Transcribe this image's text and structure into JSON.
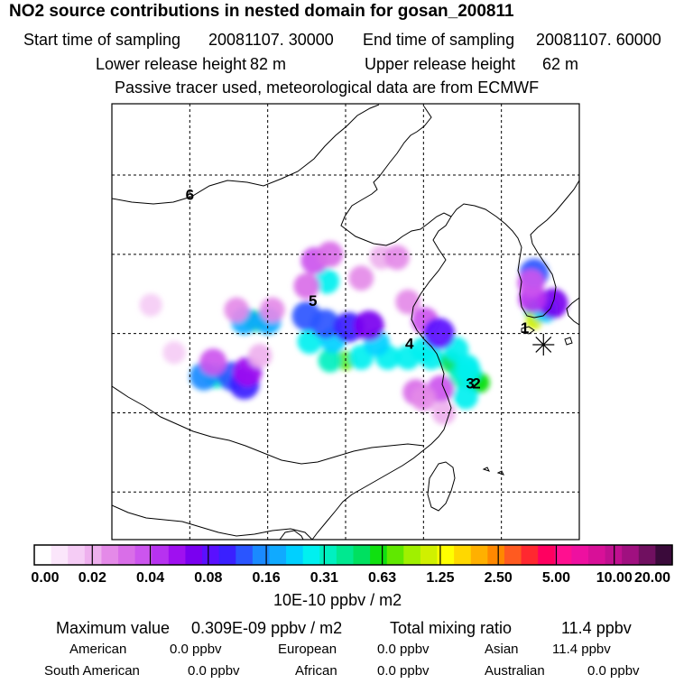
{
  "chart_data": {
    "type": "heatmap",
    "title": "NO2 source contributions in nested domain for gosan_200811",
    "start_label": "Start time of sampling",
    "start_value": "20081107. 30000",
    "end_label": "End time of sampling",
    "end_value": "20081107. 60000",
    "lower_label": "Lower release height",
    "lower_value": "82 m",
    "upper_label": "Upper release height",
    "upper_value": "62 m",
    "subtitle": "Passive tracer used, meteorological data are from ECMWF",
    "colorbar": {
      "unit": "10E-10 ppbv / m2",
      "ticks": [
        "0.00",
        "0.02",
        "0.04",
        "0.08",
        "0.16",
        "0.31",
        "0.63",
        "1.25",
        "2.50",
        "5.00",
        "10.00",
        "20.00"
      ],
      "colors": [
        "#ffffff",
        "#fbe6fb",
        "#f5ccf5",
        "#eeb0ee",
        "#e48ae8",
        "#d96ee8",
        "#cc55ee",
        "#b732f0",
        "#9f10f0",
        "#7a00f0",
        "#5a10ff",
        "#3a20ff",
        "#2a55ff",
        "#1a8aff",
        "#10aaff",
        "#00d0ff",
        "#00f0f0",
        "#00f0c0",
        "#00e890",
        "#00e060",
        "#10e010",
        "#60e800",
        "#a0f000",
        "#d0f000",
        "#ffff00",
        "#ffd800",
        "#ffb000",
        "#ff8800",
        "#ff5a20",
        "#ff2830",
        "#ff0060",
        "#ff1090",
        "#ee10a0",
        "#d81098",
        "#c01090",
        "#a01080",
        "#701060",
        "#3a0a3a"
      ]
    },
    "markers": [
      {
        "label": "1",
        "lon": 125.0,
        "lat": 34.3
      },
      {
        "label": "2",
        "lon": 121.9,
        "lat": 30.8
      },
      {
        "label": "3",
        "lon": 121.5,
        "lat": 30.8
      },
      {
        "label": "4",
        "lon": 117.6,
        "lat": 33.3
      },
      {
        "label": "5",
        "lon": 111.4,
        "lat": 36.0
      },
      {
        "label": "6",
        "lon": 103.5,
        "lat": 42.7
      }
    ],
    "receptor": {
      "name": "gosan",
      "lon": 126.2,
      "lat": 33.3
    },
    "extent": {
      "lon": [
        98.5,
        128.5
      ],
      "lat": [
        21.0,
        48.5
      ]
    },
    "grid": {
      "lons": [
        103.5,
        108.5,
        113.5,
        118.5,
        123.5
      ],
      "lats": [
        24.0,
        29.0,
        34.0,
        39.0,
        44.0
      ]
    },
    "plumes": [
      {
        "lon": 113.5,
        "lat": 32.3,
        "rank": 21
      },
      {
        "lon": 112.5,
        "lat": 32.3,
        "rank": 17
      },
      {
        "lon": 114.5,
        "lat": 32.5,
        "rank": 16
      },
      {
        "lon": 116.2,
        "lat": 32.5,
        "rank": 16
      },
      {
        "lon": 117.5,
        "lat": 32.5,
        "rank": 16
      },
      {
        "lon": 119.0,
        "lat": 32.5,
        "rank": 16
      },
      {
        "lon": 118.5,
        "lat": 33.0,
        "rank": 16
      },
      {
        "lon": 115.5,
        "lat": 33.4,
        "rank": 15
      },
      {
        "lon": 120.3,
        "lat": 32.2,
        "rank": 19
      },
      {
        "lon": 120.6,
        "lat": 33.0,
        "rank": 16
      },
      {
        "lon": 121.3,
        "lat": 31.9,
        "rank": 16
      },
      {
        "lon": 121.8,
        "lat": 31.0,
        "rank": 19
      },
      {
        "lon": 122.1,
        "lat": 30.9,
        "rank": 20
      },
      {
        "lon": 120.9,
        "lat": 31.3,
        "rank": 17
      },
      {
        "lon": 121.4,
        "lat": 31.6,
        "rank": 16
      },
      {
        "lon": 121.2,
        "lat": 30.0,
        "rank": 16
      },
      {
        "lon": 111.2,
        "lat": 33.5,
        "rank": 16
      },
      {
        "lon": 112.7,
        "lat": 33.6,
        "rank": 15
      },
      {
        "lon": 111.0,
        "lat": 35.1,
        "rank": 12
      },
      {
        "lon": 112.2,
        "lat": 34.6,
        "rank": 12
      },
      {
        "lon": 113.7,
        "lat": 34.4,
        "rank": 11
      },
      {
        "lon": 115.0,
        "lat": 34.5,
        "rank": 9
      },
      {
        "lon": 112.3,
        "lat": 37.3,
        "rank": 16
      },
      {
        "lon": 111.5,
        "lat": 38.6,
        "rank": 6
      },
      {
        "lon": 112.5,
        "lat": 39.0,
        "rank": 5
      },
      {
        "lon": 111.0,
        "lat": 37.0,
        "rank": 5
      },
      {
        "lon": 114.5,
        "lat": 37.5,
        "rank": 4
      },
      {
        "lon": 115.8,
        "lat": 38.8,
        "rank": 3
      },
      {
        "lon": 116.8,
        "lat": 38.8,
        "rank": 4
      },
      {
        "lon": 117.5,
        "lat": 36.0,
        "rank": 4
      },
      {
        "lon": 118.6,
        "lat": 34.8,
        "rank": 6
      },
      {
        "lon": 119.5,
        "lat": 34.0,
        "rank": 10
      },
      {
        "lon": 118.0,
        "lat": 30.3,
        "rank": 5
      },
      {
        "lon": 119.6,
        "lat": 30.5,
        "rank": 6
      },
      {
        "lon": 118.5,
        "lat": 29.9,
        "rank": 4
      },
      {
        "lon": 119.8,
        "lat": 29.0,
        "rank": 3
      },
      {
        "lon": 107.7,
        "lat": 34.8,
        "rank": 19
      },
      {
        "lon": 107.0,
        "lat": 34.8,
        "rank": 14
      },
      {
        "lon": 108.5,
        "lat": 34.8,
        "rank": 14
      },
      {
        "lon": 106.5,
        "lat": 35.5,
        "rank": 4
      },
      {
        "lon": 108.8,
        "lat": 35.5,
        "rank": 4
      },
      {
        "lon": 105.2,
        "lat": 31.3,
        "rank": 17
      },
      {
        "lon": 104.4,
        "lat": 31.3,
        "rank": 13
      },
      {
        "lon": 106.2,
        "lat": 31.3,
        "rank": 12
      },
      {
        "lon": 105.0,
        "lat": 32.2,
        "rank": 6
      },
      {
        "lon": 107.0,
        "lat": 30.8,
        "rank": 11
      },
      {
        "lon": 107.2,
        "lat": 31.6,
        "rank": 8
      },
      {
        "lon": 108.0,
        "lat": 32.6,
        "rank": 3
      },
      {
        "lon": 102.5,
        "lat": 32.8,
        "rank": 2
      },
      {
        "lon": 101.0,
        "lat": 35.8,
        "rank": 2
      },
      {
        "lon": 125.7,
        "lat": 35.4,
        "rank": 18
      },
      {
        "lon": 125.6,
        "lat": 34.8,
        "rank": 23
      },
      {
        "lon": 126.3,
        "lat": 35.5,
        "rank": 15
      },
      {
        "lon": 126.8,
        "lat": 35.9,
        "rank": 9
      },
      {
        "lon": 125.5,
        "lat": 36.2,
        "rank": 7
      },
      {
        "lon": 125.6,
        "lat": 37.8,
        "rank": 12
      },
      {
        "lon": 125.4,
        "lat": 37.2,
        "rank": 6
      }
    ]
  },
  "footer": {
    "max_label": "Maximum value",
    "max_value": "0.309E-09 ppbv / m2",
    "total_label": "Total mixing ratio",
    "total_value": "11.4 ppbv",
    "regions": [
      {
        "name": "American",
        "value": "0.0 ppbv"
      },
      {
        "name": "European",
        "value": "0.0 ppbv"
      },
      {
        "name": "Asian",
        "value": "11.4 ppbv"
      },
      {
        "name": "South American",
        "value": "0.0 ppbv"
      },
      {
        "name": "African",
        "value": "0.0 ppbv"
      },
      {
        "name": "Australian",
        "value": "0.0 ppbv"
      }
    ]
  }
}
